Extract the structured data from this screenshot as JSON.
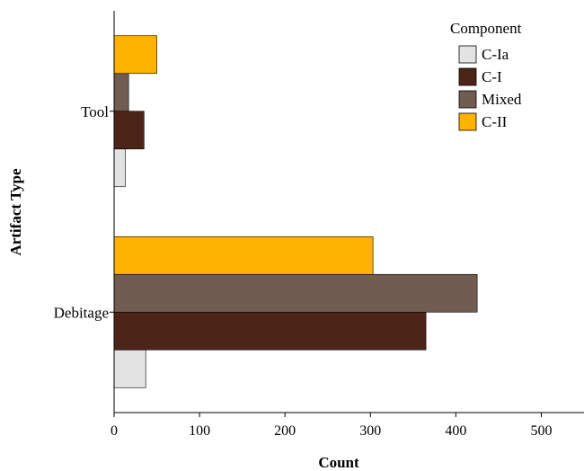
{
  "chart_data": {
    "type": "bar",
    "orientation": "horizontal",
    "title": "",
    "xlabel": "Count",
    "ylabel": "Artifact Type",
    "categories": [
      "Tool",
      "Debitage"
    ],
    "series": [
      {
        "name": "C-Ia",
        "color": "#e3e3e3",
        "values": [
          13,
          37
        ]
      },
      {
        "name": "C-I",
        "color": "#4d2418",
        "values": [
          35,
          365
        ]
      },
      {
        "name": "Mixed",
        "color": "#705c50",
        "values": [
          17,
          425
        ]
      },
      {
        "name": "C-II",
        "color": "#ffb300",
        "values": [
          50,
          303
        ]
      }
    ],
    "xlim": [
      0,
      550
    ],
    "xticks": [
      0,
      100,
      200,
      300,
      400,
      500
    ],
    "grid": false,
    "legend": {
      "title": "Component",
      "position": "top-right"
    }
  }
}
